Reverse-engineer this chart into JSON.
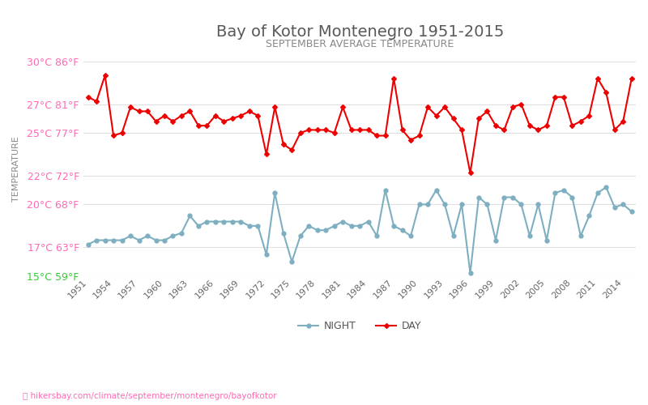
{
  "title": "Bay of Kotor Montenegro 1951-2015",
  "subtitle": "SEPTEMBER AVERAGE TEMPERATURE",
  "ylabel": "TEMPERATURE",
  "xlabel_url": "hikersbay.com/climate/september/montenegro/bayofkotor",
  "legend_night": "NIGHT",
  "legend_day": "DAY",
  "years": [
    1951,
    1952,
    1953,
    1954,
    1955,
    1956,
    1957,
    1958,
    1959,
    1960,
    1961,
    1962,
    1963,
    1964,
    1965,
    1966,
    1967,
    1968,
    1969,
    1970,
    1971,
    1972,
    1973,
    1974,
    1975,
    1976,
    1977,
    1978,
    1979,
    1980,
    1981,
    1982,
    1983,
    1984,
    1985,
    1986,
    1987,
    1988,
    1989,
    1990,
    1991,
    1992,
    1993,
    1994,
    1995,
    1996,
    1997,
    1998,
    1999,
    2000,
    2001,
    2002,
    2003,
    2004,
    2005,
    2006,
    2007,
    2008,
    2009,
    2010,
    2011,
    2012,
    2013,
    2014,
    2015
  ],
  "day_temps": [
    27.5,
    27.2,
    29.0,
    24.8,
    25.0,
    26.8,
    26.5,
    26.5,
    25.8,
    26.2,
    25.8,
    26.2,
    26.5,
    25.5,
    25.5,
    26.2,
    25.8,
    26.0,
    26.2,
    26.5,
    26.2,
    23.5,
    26.8,
    24.2,
    23.8,
    25.0,
    25.2,
    25.2,
    25.2,
    25.0,
    26.8,
    25.2,
    25.2,
    25.2,
    24.8,
    24.8,
    28.8,
    25.2,
    24.5,
    24.8,
    26.8,
    26.2,
    26.8,
    26.0,
    25.2,
    22.2,
    26.0,
    26.5,
    25.5,
    25.2,
    26.8,
    27.0,
    25.5,
    25.2,
    25.5,
    27.5,
    27.5,
    25.5,
    25.8,
    26.2,
    28.8,
    27.8,
    25.2,
    25.8,
    28.8
  ],
  "night_temps": [
    17.2,
    17.5,
    17.5,
    17.5,
    17.5,
    17.8,
    17.5,
    17.8,
    17.5,
    17.5,
    17.8,
    18.0,
    19.2,
    18.5,
    18.8,
    18.8,
    18.8,
    18.8,
    18.8,
    18.5,
    18.5,
    16.5,
    20.8,
    18.0,
    16.0,
    17.8,
    18.5,
    18.2,
    18.2,
    18.5,
    18.8,
    18.5,
    18.5,
    18.8,
    17.8,
    21.0,
    18.5,
    18.2,
    17.8,
    20.0,
    20.0,
    21.0,
    20.0,
    17.8,
    20.0,
    15.2,
    20.5,
    20.0,
    17.5,
    20.5,
    20.5,
    20.0,
    17.8,
    20.0,
    17.5,
    20.8,
    21.0,
    20.5,
    17.8,
    19.2,
    20.8,
    21.2,
    19.8,
    20.0,
    19.5
  ],
  "ylim": [
    15,
    30
  ],
  "ytick_values": [
    15,
    17,
    20,
    22,
    25,
    27,
    30
  ],
  "ytick_labels": [
    "15°C 59°F",
    "17°C 63°F",
    "20°C 68°F",
    "22°C 72°F",
    "25°C 77°F",
    "27°C 81°F",
    "30°C 86°F"
  ],
  "ytick_colors": [
    "#33cc33",
    "#ff69b4",
    "#ff69b4",
    "#ff69b4",
    "#ff69b4",
    "#ff69b4",
    "#ff69b4"
  ],
  "xtick_years": [
    1951,
    1954,
    1957,
    1960,
    1963,
    1966,
    1969,
    1972,
    1975,
    1978,
    1981,
    1984,
    1987,
    1990,
    1993,
    1996,
    1999,
    2002,
    2005,
    2008,
    2011,
    2014
  ],
  "day_color": "#ee0000",
  "night_color": "#7eafc0",
  "title_color": "#595959",
  "subtitle_color": "#888888",
  "ylabel_color": "#888888",
  "bg_color": "#ffffff",
  "grid_color": "#e0e0e0",
  "url_color": "#ff69b4",
  "marker_size": 3.5,
  "line_width": 1.5,
  "title_fontsize": 14,
  "subtitle_fontsize": 9,
  "ytick_fontsize": 9,
  "xtick_fontsize": 8,
  "ylabel_fontsize": 8
}
